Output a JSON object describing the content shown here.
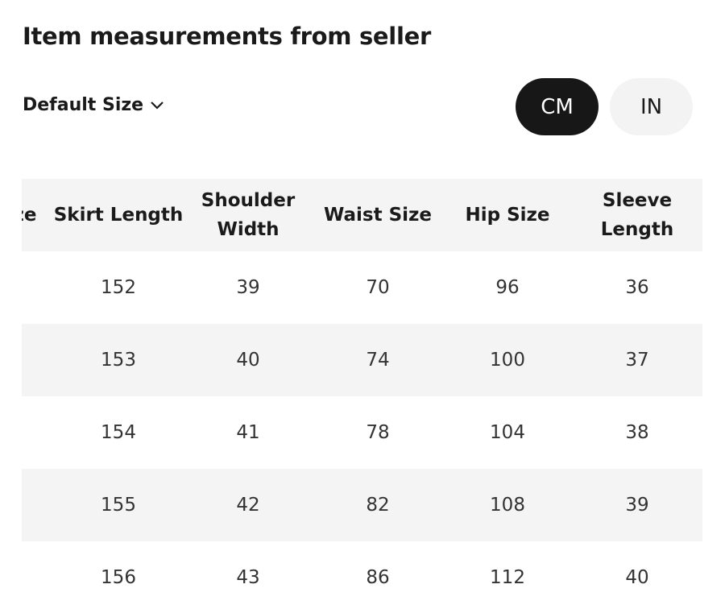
{
  "title": "Item measurements from seller",
  "size_selector": "Default Size",
  "units": [
    "CM",
    "IN"
  ],
  "table": {
    "headers": [
      "ze",
      "Skirt Length",
      "Shoulder Width",
      "Waist Size",
      "Hip Size",
      "Sleeve Length"
    ],
    "rows": [
      [
        152,
        39,
        70,
        96,
        36
      ],
      [
        153,
        40,
        74,
        100,
        37
      ],
      [
        154,
        41,
        78,
        104,
        38
      ],
      [
        155,
        42,
        82,
        108,
        39
      ],
      [
        156,
        43,
        86,
        112,
        40
      ]
    ]
  }
}
